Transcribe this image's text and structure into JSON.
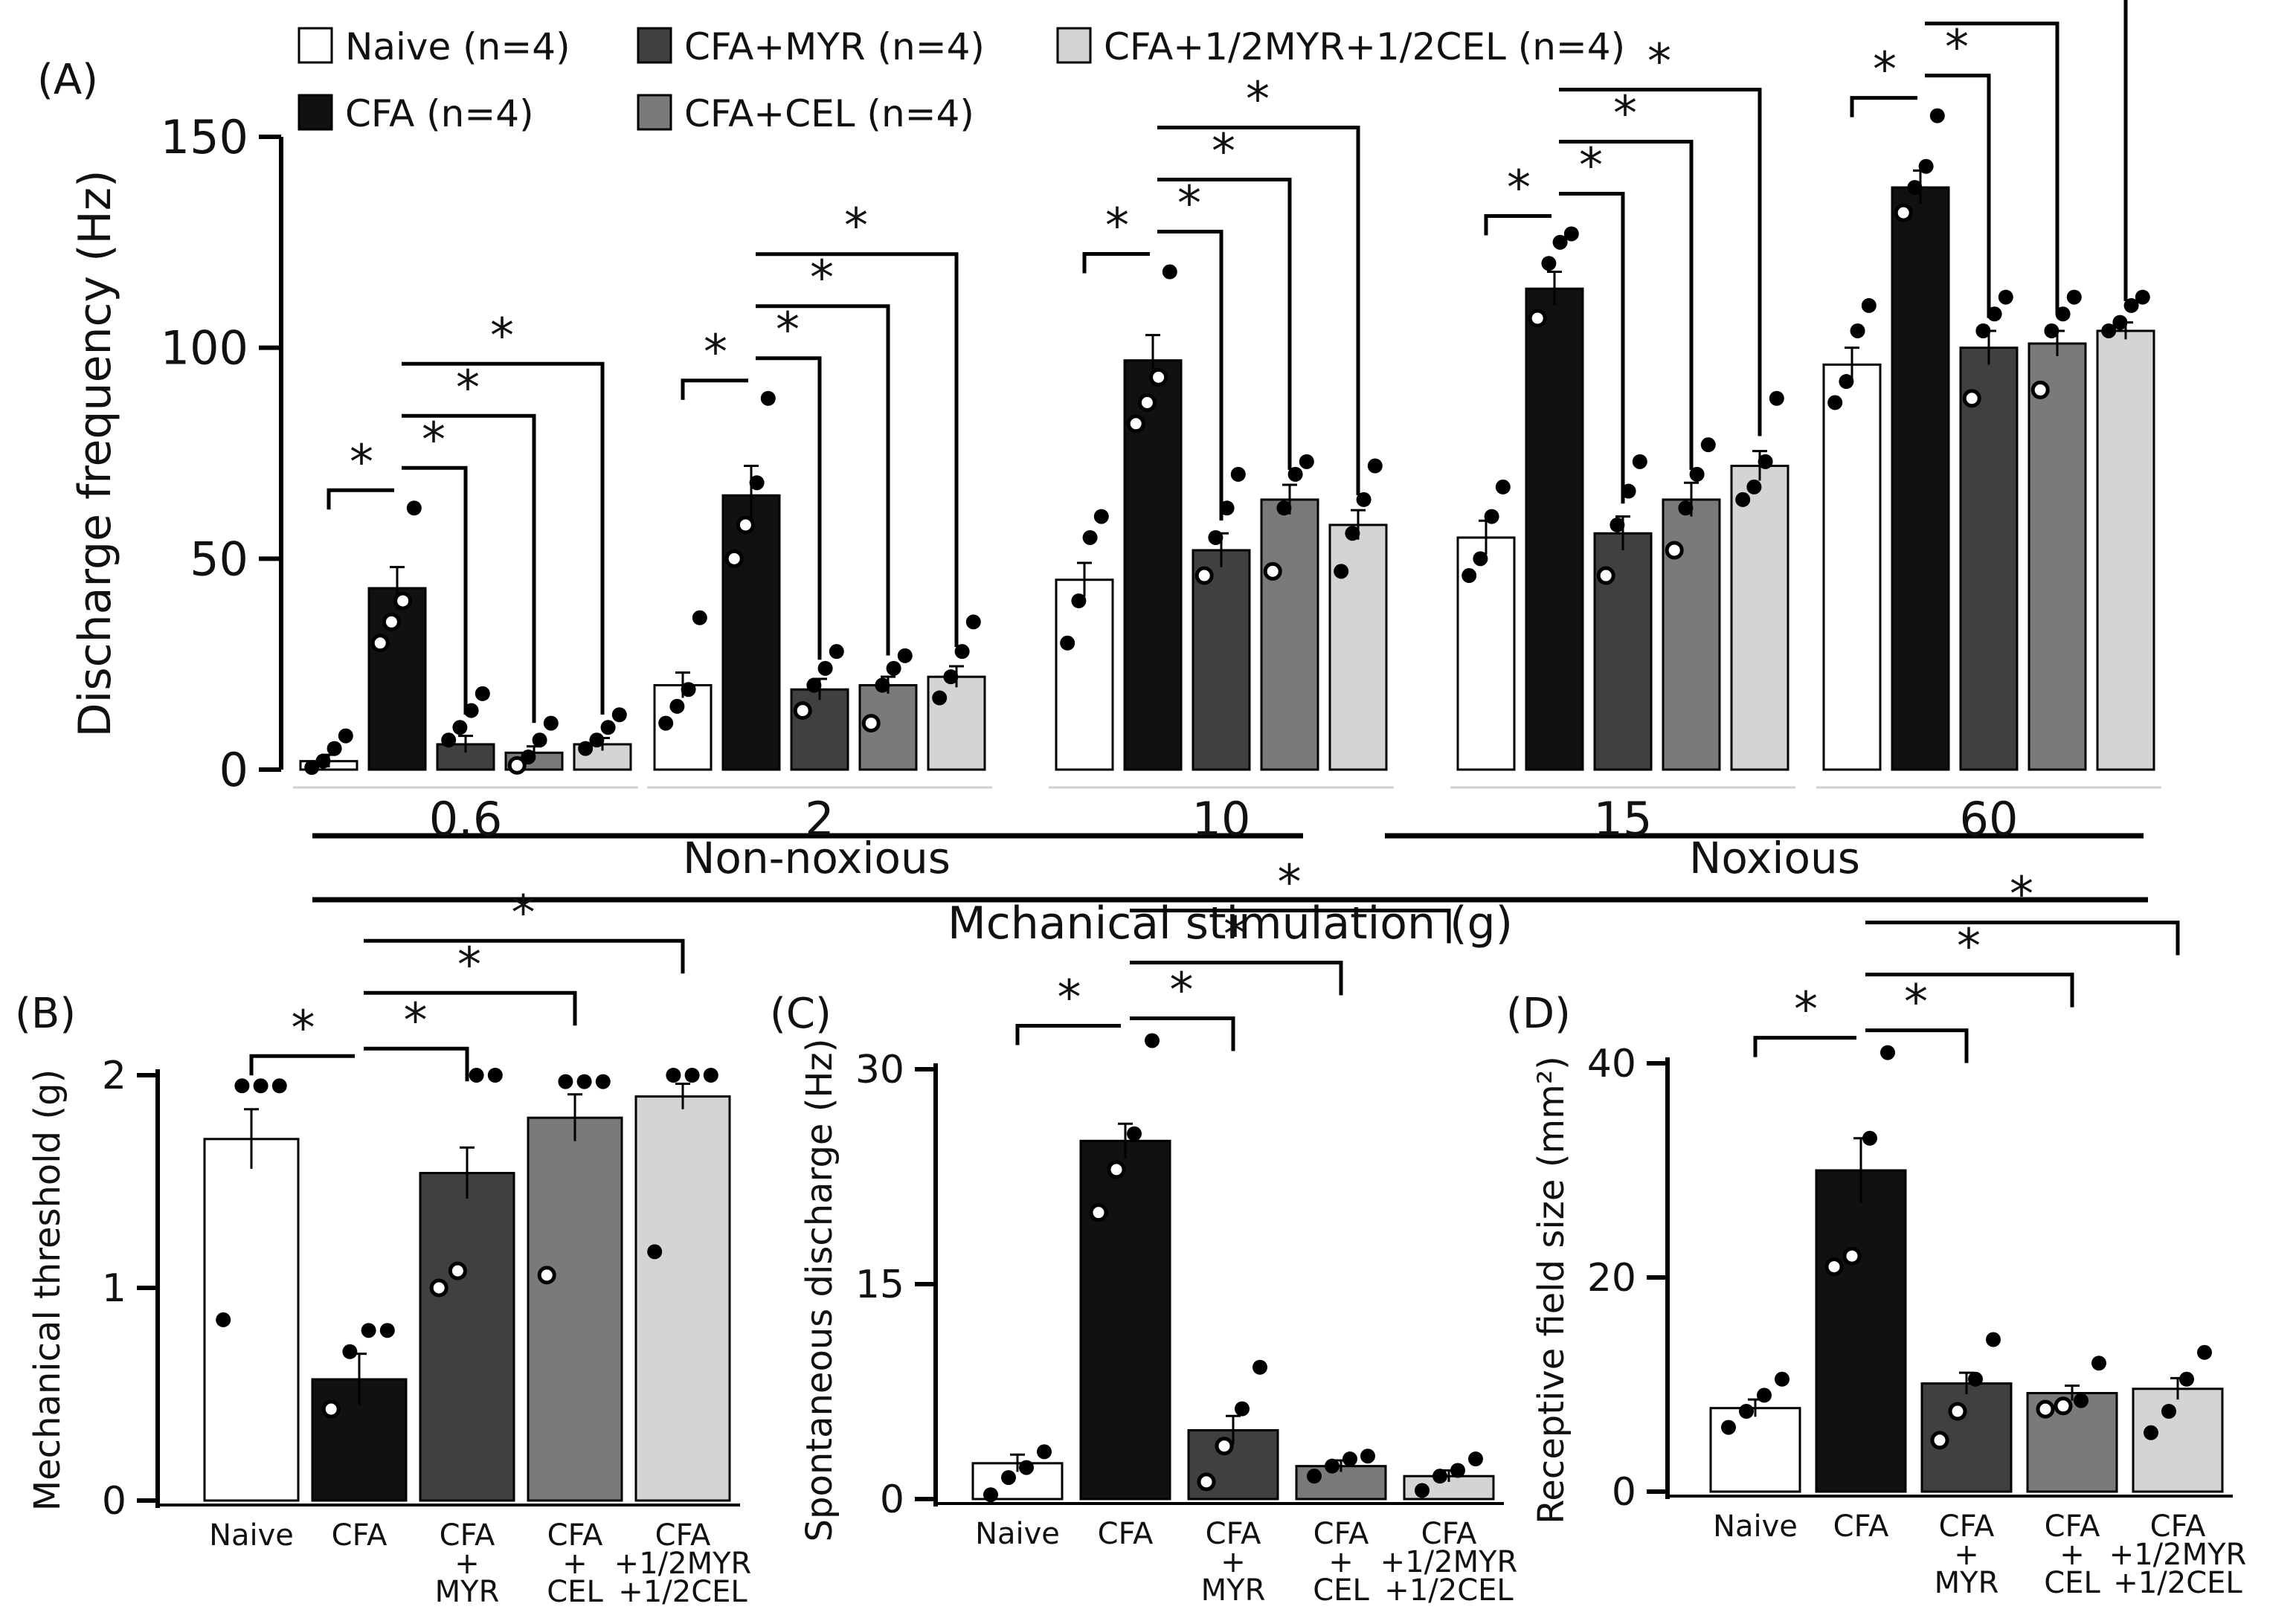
{
  "colors": {
    "naive": "#ffffff",
    "cfa": "#111111",
    "myr": "#404040",
    "cel": "#7a7a7a",
    "mix": "#d4d4d4"
  },
  "legend": [
    {
      "label": "Naive (n=4)",
      "color": "#ffffff"
    },
    {
      "label": "CFA (n=4)",
      "color": "#111111"
    },
    {
      "label": "CFA+MYR (n=4)",
      "color": "#404040"
    },
    {
      "label": "CFA+CEL (n=4)",
      "color": "#7a7a7a"
    },
    {
      "label": "CFA+1/2MYR+1/2CEL (n=4)",
      "color": "#d4d4d4"
    }
  ],
  "significance_mark": "*",
  "chart_data": [
    {
      "panel": "(A)",
      "type": "bar",
      "ylabel": "Discharge frequency (Hz)",
      "ylim": [
        0,
        150
      ],
      "yticks": [
        0,
        50,
        100,
        150
      ],
      "categories": [
        "0.6",
        "2",
        "10",
        "15",
        "60"
      ],
      "group_labels": {
        "non_noxious": "Non-noxious",
        "noxious": "Noxious",
        "xlabel": "Mchanical stimulation (g)"
      },
      "series": [
        {
          "name": "Naive (n=4)",
          "values": [
            2,
            20,
            45,
            55,
            96
          ],
          "sem": [
            1.5,
            3,
            4,
            4,
            4
          ],
          "points": [
            [
              0.5,
              2,
              5,
              8
            ],
            [
              11,
              15,
              19,
              36
            ],
            [
              30,
              40,
              55,
              60
            ],
            [
              46,
              50,
              60,
              67
            ],
            [
              87,
              92,
              104,
              110
            ]
          ]
        },
        {
          "name": "CFA (n=4)",
          "values": [
            43,
            65,
            97,
            114,
            138
          ],
          "sem": [
            5,
            7,
            6,
            4,
            4
          ],
          "points": [
            [
              30,
              35,
              40,
              62
            ],
            [
              50,
              58,
              68,
              88
            ],
            [
              82,
              87,
              93,
              118
            ],
            [
              107,
              120,
              125,
              127
            ],
            [
              132,
              138,
              143,
              155
            ]
          ]
        },
        {
          "name": "CFA+MYR (n=4)",
          "values": [
            6,
            19,
            52,
            56,
            100
          ],
          "sem": [
            2,
            2.5,
            4,
            4,
            4
          ],
          "points": [
            [
              7,
              10,
              14,
              18
            ],
            [
              14,
              20,
              24,
              28
            ],
            [
              46,
              55,
              62,
              70
            ],
            [
              46,
              58,
              66,
              73
            ],
            [
              88,
              104,
              108,
              112
            ]
          ]
        },
        {
          "name": "CFA+CEL (n=4)",
          "values": [
            4,
            20,
            64,
            64,
            101
          ],
          "sem": [
            1.5,
            2,
            3.5,
            4,
            3
          ],
          "points": [
            [
              1,
              3,
              7,
              11
            ],
            [
              11,
              20,
              24,
              27
            ],
            [
              47,
              62,
              70,
              73
            ],
            [
              52,
              62,
              70,
              77
            ],
            [
              90,
              104,
              108,
              112
            ]
          ]
        },
        {
          "name": "CFA+1/2MYR+1/2CEL (n=4)",
          "values": [
            6,
            22,
            58,
            72,
            104
          ],
          "sem": [
            1.5,
            2.5,
            3.5,
            3.5,
            2
          ],
          "points": [
            [
              5,
              7,
              10,
              13
            ],
            [
              17,
              22,
              28,
              35
            ],
            [
              47,
              56,
              64,
              72
            ],
            [
              64,
              67,
              73,
              88
            ],
            [
              104,
              106,
              110,
              112
            ]
          ]
        }
      ],
      "significance_label": "*"
    },
    {
      "panel": "(B)",
      "type": "bar",
      "ylabel": "Mechanical threshold (g)",
      "ylim": [
        0,
        2
      ],
      "yticks": [
        0,
        1,
        2
      ],
      "categories": [
        "Naive",
        "CFA",
        "CFA\n+\nMYR",
        "CFA\n+\nCEL",
        "CFA\n+1/2MYR\n+1/2CEL"
      ],
      "values": [
        1.7,
        0.57,
        1.54,
        1.8,
        1.9
      ],
      "sem": [
        0.14,
        0.12,
        0.12,
        0.11,
        0.06
      ],
      "points": [
        [
          0.85,
          1.95,
          1.95,
          1.95
        ],
        [
          0.43,
          0.7,
          0.8,
          0.8
        ],
        [
          1.0,
          1.08,
          2.0,
          2.0
        ],
        [
          1.06,
          1.97,
          1.97,
          1.97
        ],
        [
          1.17,
          2.0,
          2.0,
          2.0
        ]
      ]
    },
    {
      "panel": "(C)",
      "type": "bar",
      "ylabel": "Spontaneous discharge (Hz)",
      "ylim": [
        0,
        30
      ],
      "yticks": [
        0,
        15,
        30
      ],
      "categories": [
        "Naive",
        "CFA",
        "CFA\n+\nMYR",
        "CFA\n+\nCEL",
        "CFA\n+1/2MYR\n+1/2CEL"
      ],
      "values": [
        2.5,
        25,
        4.8,
        2.3,
        1.6
      ],
      "sem": [
        0.6,
        1.2,
        1.0,
        0.4,
        0.4
      ],
      "points": [
        [
          0.3,
          1.5,
          2.2,
          3.3
        ],
        [
          20,
          23,
          25.5,
          32
        ],
        [
          1.2,
          3.7,
          6.3,
          9.2
        ],
        [
          1.6,
          2.3,
          2.8,
          3.0
        ],
        [
          0.6,
          1.6,
          2.0,
          2.8
        ]
      ]
    },
    {
      "panel": "(D)",
      "type": "bar",
      "ylabel": "Receptive field size (mm²)",
      "ylim": [
        0,
        40
      ],
      "yticks": [
        0,
        20,
        40
      ],
      "categories": [
        "Naive",
        "CFA",
        "CFA\n+\nMYR",
        "CFA\n+\nCEL",
        "CFA\n+1/2MYR\n+1/2CEL"
      ],
      "values": [
        7.8,
        30,
        10.1,
        9.2,
        9.6
      ],
      "sem": [
        0.8,
        3,
        1.0,
        0.7,
        1.0
      ],
      "points": [
        [
          6,
          7.5,
          9,
          10.5
        ],
        [
          21,
          22,
          33,
          41
        ],
        [
          4.8,
          7.5,
          10.5,
          14.2
        ],
        [
          7.7,
          8.0,
          8.5,
          12
        ],
        [
          5.5,
          7.5,
          10.5,
          13
        ]
      ]
    }
  ]
}
